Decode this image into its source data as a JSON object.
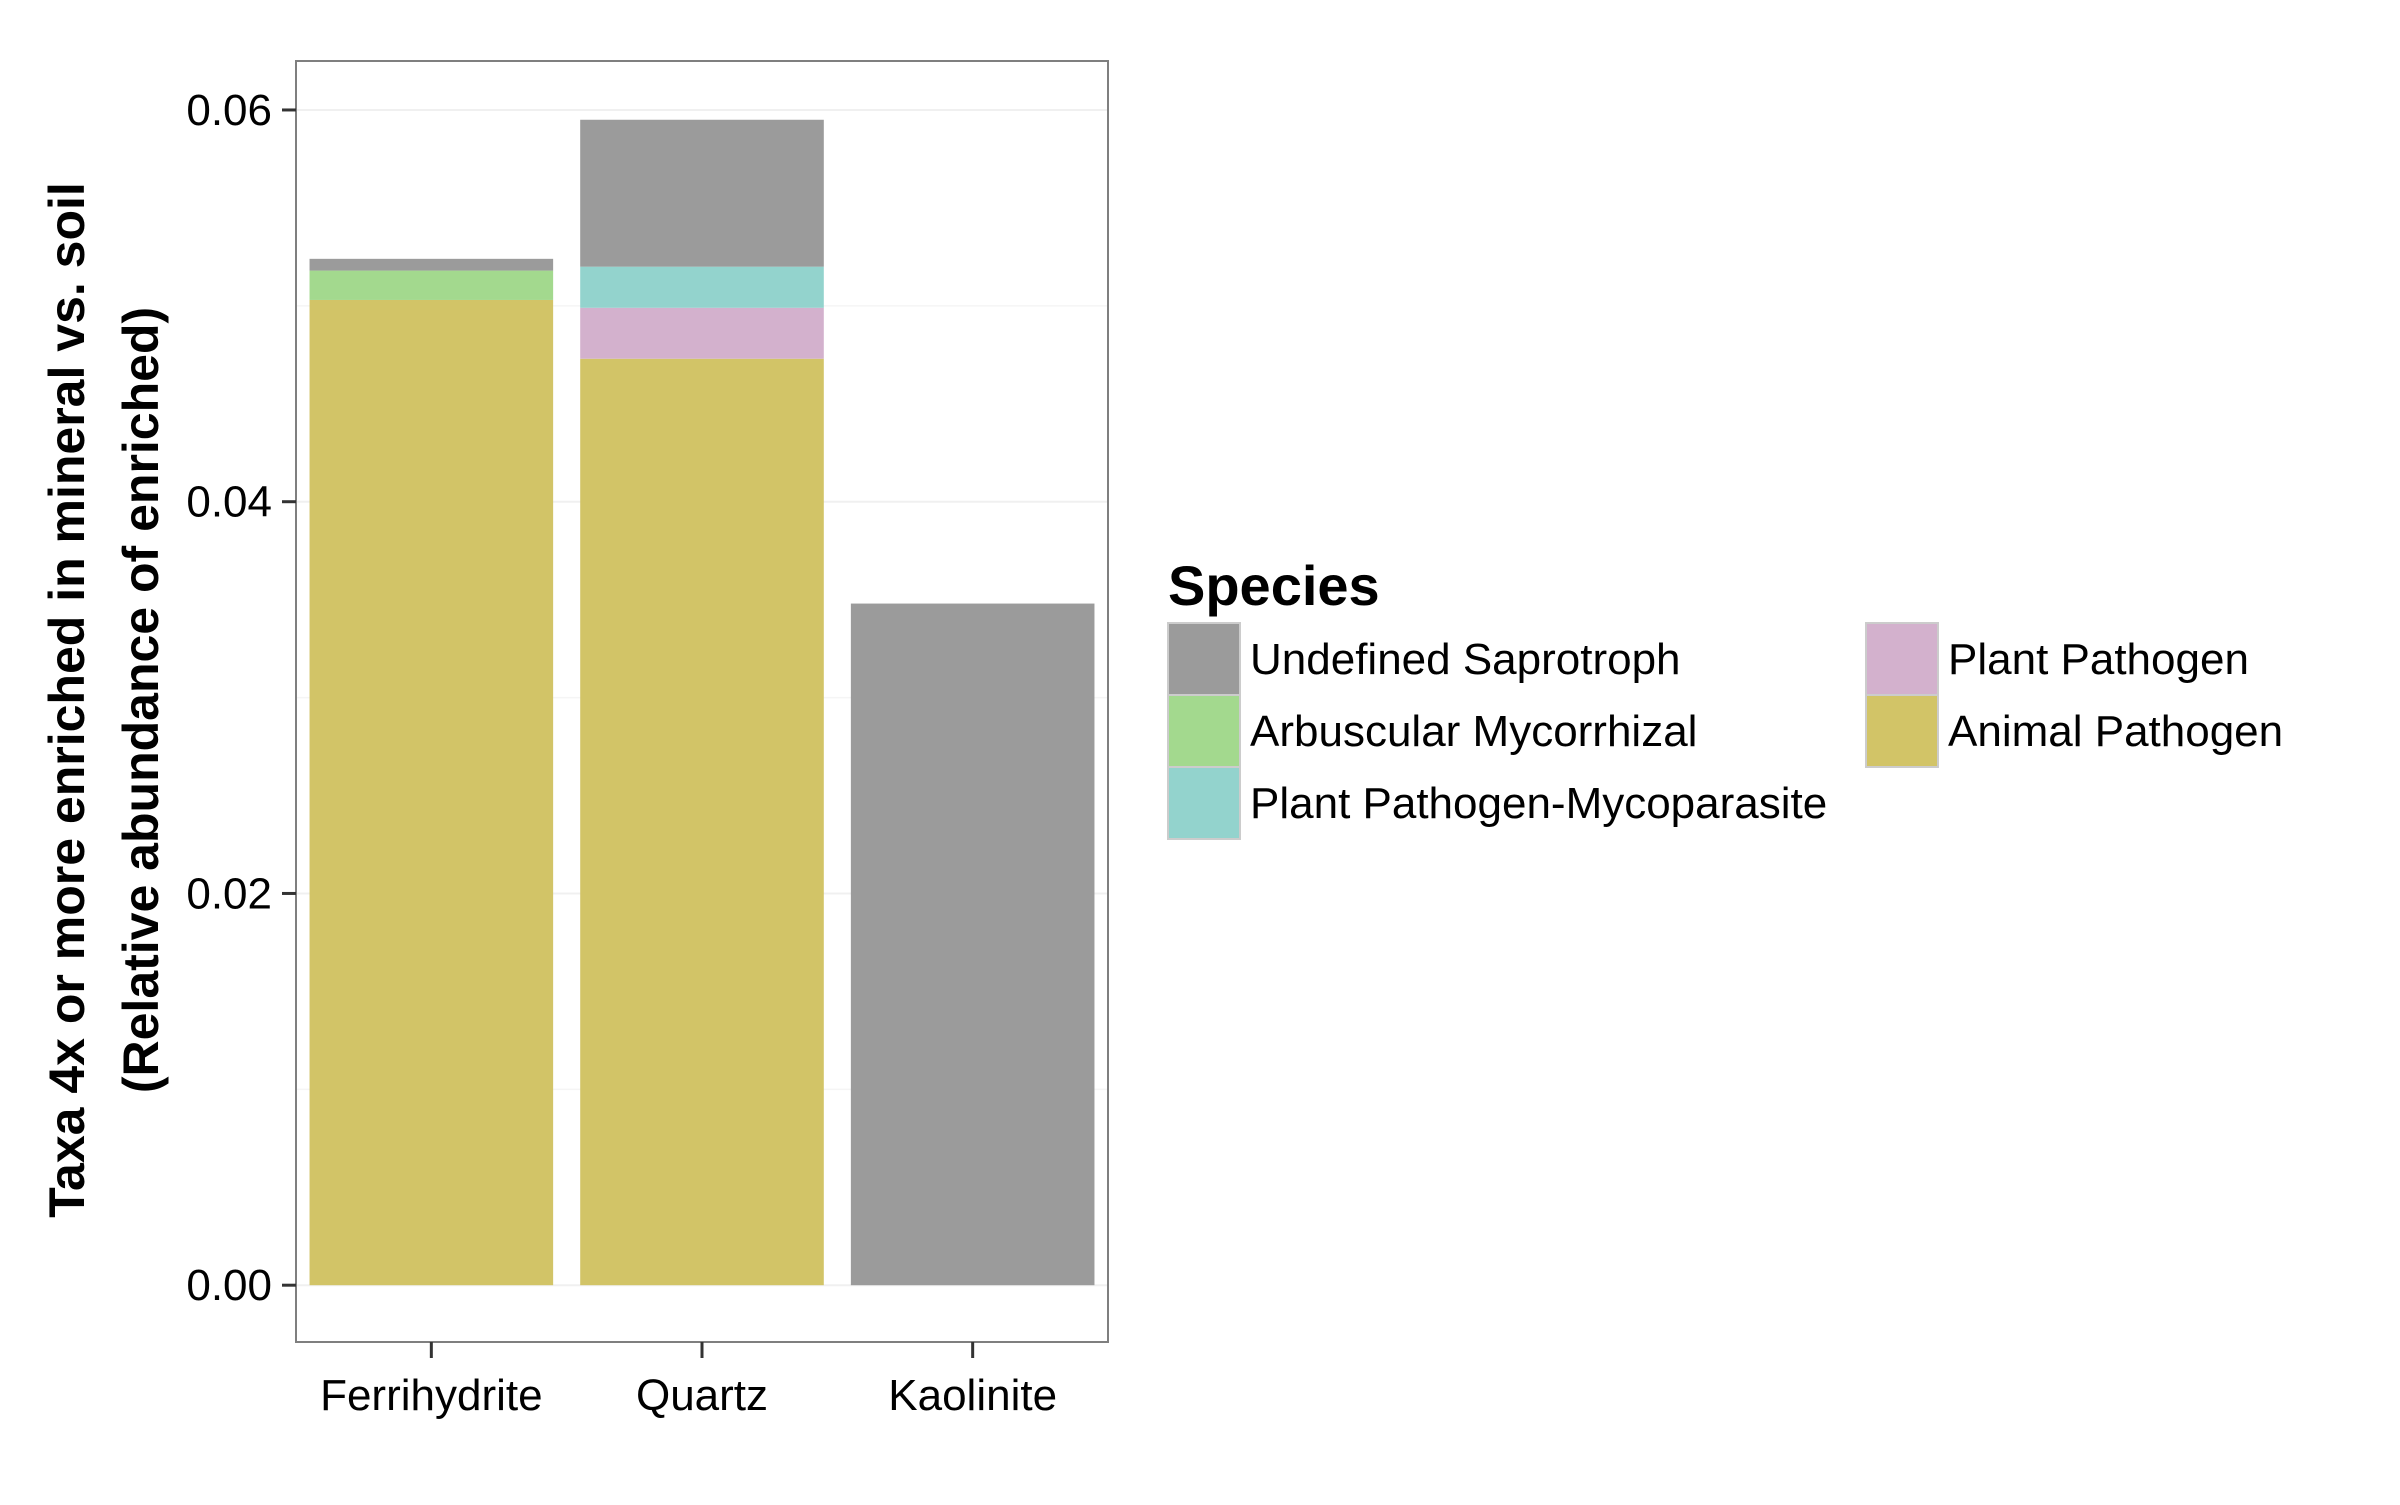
{
  "chart_data": {
    "type": "bar",
    "stacked": true,
    "categories": [
      "Ferrihydrite",
      "Quartz",
      "Kaolinite"
    ],
    "title": "",
    "xlabel": "",
    "ylabel_lines": [
      "Taxa 4x or more enriched in mineral vs. soil",
      "(Relative abundance of enriched)"
    ],
    "ylim": [
      -0.0029,
      0.0625
    ],
    "yticks": [
      0.0,
      0.02,
      0.04,
      0.06
    ],
    "ytick_labels": [
      "0.00",
      "0.02",
      "0.04",
      "0.06"
    ],
    "grid": true,
    "legend": {
      "title": "Species",
      "placement": "right",
      "entries": [
        "Undefined Saprotroph",
        "Arbuscular Mycorrhizal",
        "Plant Pathogen-Mycoparasite",
        "Plant Pathogen",
        "Animal Pathogen"
      ]
    },
    "stack_order_bottom_to_top": [
      "Animal Pathogen",
      "Plant Pathogen",
      "Plant Pathogen-Mycoparasite",
      "Arbuscular Mycorrhizal",
      "Undefined Saprotroph"
    ],
    "series": [
      {
        "name": "Undefined Saprotroph",
        "color": "#9b9b9b",
        "values": [
          0.0006,
          0.0075,
          0.0348
        ]
      },
      {
        "name": "Arbuscular Mycorrhizal",
        "color": "#a3d98e",
        "values": [
          0.0015,
          0,
          0
        ]
      },
      {
        "name": "Plant Pathogen-Mycoparasite",
        "color": "#93d3cd",
        "values": [
          0,
          0.0021,
          0
        ]
      },
      {
        "name": "Plant Pathogen",
        "color": "#d3b1cd",
        "values": [
          0,
          0.0026,
          0
        ]
      },
      {
        "name": "Animal Pathogen",
        "color": "#d2c467",
        "values": [
          0.0503,
          0.0473,
          0
        ]
      }
    ]
  }
}
